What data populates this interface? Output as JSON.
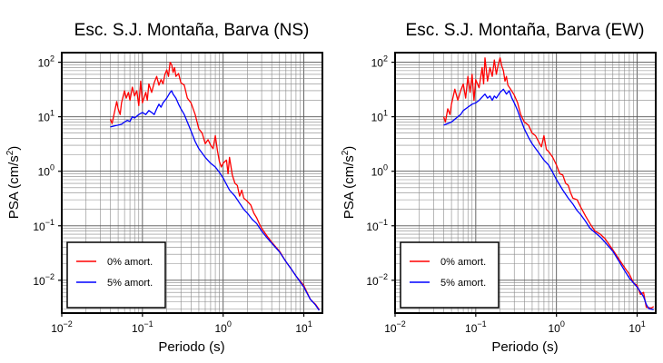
{
  "chart_data": [
    {
      "type": "line",
      "title": "Esc. S.J. Montaña, Barva (NS)",
      "xlabel": "Periodo (s)",
      "ylabel_main": "PSA (cm/s",
      "ylabel_sup": "2",
      "ylabel_end": ")",
      "xscale": "log",
      "yscale": "log",
      "xlim": [
        0.01,
        17
      ],
      "ylim": [
        0.0025,
        150
      ],
      "x_ticks": [
        {
          "base": "10",
          "exp": "−2"
        },
        {
          "base": "10",
          "exp": "−1"
        },
        {
          "base": "10",
          "exp": "0"
        },
        {
          "base": "10",
          "exp": "1"
        }
      ],
      "y_ticks": [
        {
          "base": "10",
          "exp": "−2"
        },
        {
          "base": "10",
          "exp": "−1"
        },
        {
          "base": "10",
          "exp": "0"
        },
        {
          "base": "10",
          "exp": "1"
        },
        {
          "base": "10",
          "exp": "2"
        }
      ],
      "grid": true,
      "legend_position": "bottom-left",
      "series": [
        {
          "name": "0% amort.",
          "color": "#ff0000",
          "points": [
            [
              0.04,
              9
            ],
            [
              0.042,
              7.5
            ],
            [
              0.045,
              12
            ],
            [
              0.048,
              19
            ],
            [
              0.05,
              14
            ],
            [
              0.053,
              11
            ],
            [
              0.055,
              18
            ],
            [
              0.06,
              30
            ],
            [
              0.063,
              22
            ],
            [
              0.067,
              28
            ],
            [
              0.07,
              20
            ],
            [
              0.075,
              35
            ],
            [
              0.08,
              24
            ],
            [
              0.085,
              30
            ],
            [
              0.09,
              16
            ],
            [
              0.095,
              45
            ],
            [
              0.1,
              18
            ],
            [
              0.11,
              28
            ],
            [
              0.115,
              20
            ],
            [
              0.12,
              40
            ],
            [
              0.13,
              28
            ],
            [
              0.14,
              42
            ],
            [
              0.15,
              55
            ],
            [
              0.16,
              38
            ],
            [
              0.17,
              48
            ],
            [
              0.18,
              40
            ],
            [
              0.19,
              60
            ],
            [
              0.2,
              72
            ],
            [
              0.21,
              55
            ],
            [
              0.22,
              100
            ],
            [
              0.23,
              90
            ],
            [
              0.24,
              65
            ],
            [
              0.25,
              80
            ],
            [
              0.26,
              55
            ],
            [
              0.28,
              62
            ],
            [
              0.3,
              42
            ],
            [
              0.33,
              38
            ],
            [
              0.36,
              22
            ],
            [
              0.4,
              18
            ],
            [
              0.45,
              11
            ],
            [
              0.5,
              6
            ],
            [
              0.55,
              5
            ],
            [
              0.6,
              3.2
            ],
            [
              0.65,
              3.8
            ],
            [
              0.7,
              3
            ],
            [
              0.75,
              2.6
            ],
            [
              0.8,
              4.5
            ],
            [
              0.85,
              2.4
            ],
            [
              0.9,
              1.5
            ],
            [
              0.95,
              1.2
            ],
            [
              1.0,
              1.4
            ],
            [
              1.1,
              1.6
            ],
            [
              1.15,
              0.9
            ],
            [
              1.2,
              1.8
            ],
            [
              1.3,
              0.85
            ],
            [
              1.4,
              0.6
            ],
            [
              1.5,
              0.55
            ],
            [
              1.6,
              0.35
            ],
            [
              1.7,
              0.45
            ],
            [
              1.8,
              0.32
            ],
            [
              2.0,
              0.28
            ],
            [
              2.2,
              0.24
            ],
            [
              2.4,
              0.17
            ],
            [
              2.6,
              0.14
            ],
            [
              2.8,
              0.11
            ],
            [
              3.0,
              0.09
            ],
            [
              3.5,
              0.065
            ],
            [
              4.0,
              0.05
            ],
            [
              5.0,
              0.034
            ],
            [
              6.0,
              0.022
            ],
            [
              7.0,
              0.016
            ],
            [
              8.0,
              0.012
            ],
            [
              10.0,
              0.008
            ],
            [
              12.0,
              0.0045
            ],
            [
              14.0,
              0.0036
            ],
            [
              15.5,
              0.0029
            ]
          ]
        },
        {
          "name": "5% amort.",
          "color": "#0000ff",
          "points": [
            [
              0.04,
              6.5
            ],
            [
              0.045,
              6.8
            ],
            [
              0.05,
              7
            ],
            [
              0.055,
              7.3
            ],
            [
              0.06,
              8
            ],
            [
              0.065,
              8.6
            ],
            [
              0.07,
              8.2
            ],
            [
              0.075,
              10
            ],
            [
              0.08,
              9.5
            ],
            [
              0.09,
              11
            ],
            [
              0.1,
              12
            ],
            [
              0.11,
              11
            ],
            [
              0.12,
              13
            ],
            [
              0.13,
              12
            ],
            [
              0.14,
              11
            ],
            [
              0.15,
              14
            ],
            [
              0.16,
              17
            ],
            [
              0.17,
              15
            ],
            [
              0.18,
              18
            ],
            [
              0.2,
              22
            ],
            [
              0.22,
              28
            ],
            [
              0.23,
              30
            ],
            [
              0.24,
              26
            ],
            [
              0.26,
              22
            ],
            [
              0.28,
              17
            ],
            [
              0.3,
              14
            ],
            [
              0.33,
              11
            ],
            [
              0.36,
              8
            ],
            [
              0.4,
              5.5
            ],
            [
              0.45,
              3.5
            ],
            [
              0.5,
              2.6
            ],
            [
              0.6,
              1.8
            ],
            [
              0.7,
              1.4
            ],
            [
              0.8,
              1.2
            ],
            [
              0.9,
              0.95
            ],
            [
              1.0,
              0.75
            ],
            [
              1.2,
              0.45
            ],
            [
              1.4,
              0.35
            ],
            [
              1.6,
              0.26
            ],
            [
              1.8,
              0.2
            ],
            [
              2.0,
              0.17
            ],
            [
              2.3,
              0.13
            ],
            [
              2.6,
              0.11
            ],
            [
              3.0,
              0.08
            ],
            [
              3.5,
              0.06
            ],
            [
              4.0,
              0.048
            ],
            [
              5.0,
              0.033
            ],
            [
              6.0,
              0.022
            ],
            [
              7.0,
              0.016
            ],
            [
              8.0,
              0.012
            ],
            [
              10.0,
              0.0075
            ],
            [
              12.0,
              0.0045
            ],
            [
              14.0,
              0.0035
            ],
            [
              15.5,
              0.0028
            ]
          ]
        }
      ]
    },
    {
      "type": "line",
      "title": "Esc. S.J. Montaña, Barva (EW)",
      "xlabel": "Periodo (s)",
      "ylabel_main": "PSA (cm/s",
      "ylabel_sup": "2",
      "ylabel_end": ")",
      "xscale": "log",
      "yscale": "log",
      "xlim": [
        0.01,
        17
      ],
      "ylim": [
        0.0025,
        150
      ],
      "x_ticks": [
        {
          "base": "10",
          "exp": "−2"
        },
        {
          "base": "10",
          "exp": "−1"
        },
        {
          "base": "10",
          "exp": "0"
        },
        {
          "base": "10",
          "exp": "1"
        }
      ],
      "y_ticks": [
        {
          "base": "10",
          "exp": "−2"
        },
        {
          "base": "10",
          "exp": "−1"
        },
        {
          "base": "10",
          "exp": "0"
        },
        {
          "base": "10",
          "exp": "1"
        },
        {
          "base": "10",
          "exp": "2"
        }
      ],
      "grid": true,
      "legend_position": "bottom-left",
      "series": [
        {
          "name": "0% amort.",
          "color": "#ff0000",
          "points": [
            [
              0.04,
              10
            ],
            [
              0.042,
              8
            ],
            [
              0.045,
              14
            ],
            [
              0.048,
              11
            ],
            [
              0.05,
              17
            ],
            [
              0.055,
              32
            ],
            [
              0.06,
              20
            ],
            [
              0.065,
              30
            ],
            [
              0.07,
              40
            ],
            [
              0.075,
              22
            ],
            [
              0.08,
              55
            ],
            [
              0.085,
              28
            ],
            [
              0.09,
              60
            ],
            [
              0.095,
              20
            ],
            [
              0.1,
              48
            ],
            [
              0.11,
              34
            ],
            [
              0.12,
              80
            ],
            [
              0.125,
              40
            ],
            [
              0.13,
              120
            ],
            [
              0.14,
              45
            ],
            [
              0.15,
              80
            ],
            [
              0.16,
              55
            ],
            [
              0.17,
              110
            ],
            [
              0.18,
              60
            ],
            [
              0.19,
              90
            ],
            [
              0.2,
              120
            ],
            [
              0.21,
              85
            ],
            [
              0.22,
              70
            ],
            [
              0.23,
              45
            ],
            [
              0.24,
              55
            ],
            [
              0.25,
              38
            ],
            [
              0.27,
              32
            ],
            [
              0.3,
              25
            ],
            [
              0.33,
              18
            ],
            [
              0.36,
              11
            ],
            [
              0.4,
              8
            ],
            [
              0.45,
              7
            ],
            [
              0.5,
              5
            ],
            [
              0.55,
              4.5
            ],
            [
              0.6,
              3.5
            ],
            [
              0.65,
              2.8
            ],
            [
              0.7,
              4.5
            ],
            [
              0.75,
              2.5
            ],
            [
              0.8,
              2.3
            ],
            [
              0.9,
              1.8
            ],
            [
              1.0,
              1.3
            ],
            [
              1.1,
              0.9
            ],
            [
              1.2,
              0.85
            ],
            [
              1.3,
              0.6
            ],
            [
              1.4,
              0.55
            ],
            [
              1.5,
              0.4
            ],
            [
              1.6,
              0.32
            ],
            [
              1.8,
              0.3
            ],
            [
              2.0,
              0.22
            ],
            [
              2.3,
              0.15
            ],
            [
              2.6,
              0.11
            ],
            [
              3.0,
              0.08
            ],
            [
              3.5,
              0.07
            ],
            [
              4.0,
              0.058
            ],
            [
              5.0,
              0.036
            ],
            [
              6.0,
              0.024
            ],
            [
              7.0,
              0.017
            ],
            [
              8.0,
              0.013
            ],
            [
              9.0,
              0.009
            ],
            [
              10.0,
              0.008
            ],
            [
              11.0,
              0.0055
            ],
            [
              12.0,
              0.006
            ],
            [
              13.0,
              0.0032
            ],
            [
              15.0,
              0.0031
            ],
            [
              16.0,
              0.0033
            ]
          ]
        },
        {
          "name": "5% amort.",
          "color": "#0000ff",
          "points": [
            [
              0.04,
              7
            ],
            [
              0.045,
              7.5
            ],
            [
              0.05,
              8
            ],
            [
              0.055,
              9
            ],
            [
              0.06,
              10
            ],
            [
              0.065,
              11
            ],
            [
              0.07,
              13
            ],
            [
              0.08,
              15
            ],
            [
              0.09,
              17
            ],
            [
              0.1,
              18
            ],
            [
              0.11,
              20
            ],
            [
              0.12,
              23
            ],
            [
              0.13,
              26
            ],
            [
              0.14,
              22
            ],
            [
              0.15,
              24
            ],
            [
              0.16,
              20
            ],
            [
              0.17,
              24
            ],
            [
              0.18,
              22
            ],
            [
              0.2,
              28
            ],
            [
              0.22,
              32
            ],
            [
              0.24,
              26
            ],
            [
              0.26,
              30
            ],
            [
              0.28,
              22
            ],
            [
              0.3,
              18
            ],
            [
              0.33,
              13
            ],
            [
              0.36,
              9
            ],
            [
              0.4,
              6
            ],
            [
              0.45,
              4.2
            ],
            [
              0.5,
              3.2
            ],
            [
              0.6,
              2.2
            ],
            [
              0.7,
              1.6
            ],
            [
              0.8,
              1.3
            ],
            [
              0.9,
              0.95
            ],
            [
              1.0,
              0.7
            ],
            [
              1.2,
              0.45
            ],
            [
              1.4,
              0.32
            ],
            [
              1.6,
              0.25
            ],
            [
              1.8,
              0.19
            ],
            [
              2.0,
              0.16
            ],
            [
              2.3,
              0.12
            ],
            [
              2.6,
              0.09
            ],
            [
              3.0,
              0.075
            ],
            [
              3.5,
              0.062
            ],
            [
              4.0,
              0.05
            ],
            [
              5.0,
              0.034
            ],
            [
              6.0,
              0.022
            ],
            [
              7.0,
              0.015
            ],
            [
              8.0,
              0.011
            ],
            [
              10.0,
              0.0075
            ],
            [
              12.0,
              0.005
            ],
            [
              13.0,
              0.0036
            ],
            [
              14.0,
              0.003
            ],
            [
              16.0,
              0.0029
            ]
          ]
        }
      ]
    }
  ]
}
